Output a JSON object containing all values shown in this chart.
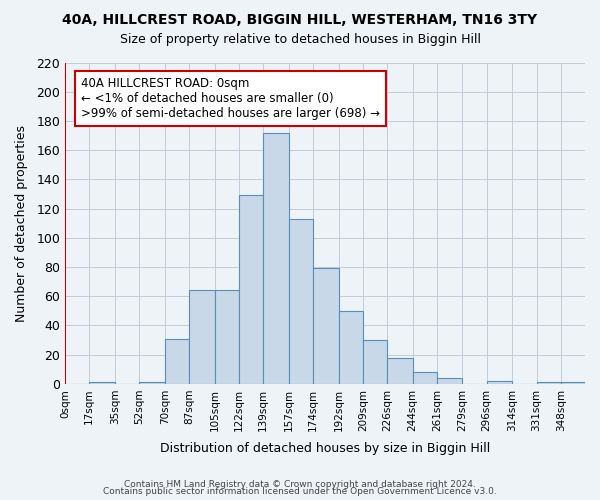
{
  "title1": "40A, HILLCREST ROAD, BIGGIN HILL, WESTERHAM, TN16 3TY",
  "title2": "Size of property relative to detached houses in Biggin Hill",
  "xlabel": "Distribution of detached houses by size in Biggin Hill",
  "ylabel": "Number of detached properties",
  "bar_values": [
    0,
    1,
    0,
    1,
    31,
    64,
    64,
    129,
    172,
    113,
    79,
    50,
    30,
    18,
    8,
    4,
    0,
    2,
    0,
    1,
    1
  ],
  "bar_labels": [
    "0sqm",
    "17sqm",
    "35sqm",
    "52sqm",
    "70sqm",
    "87sqm",
    "105sqm",
    "122sqm",
    "139sqm",
    "157sqm",
    "174sqm",
    "192sqm",
    "209sqm",
    "226sqm",
    "244sqm",
    "261sqm",
    "279sqm",
    "296sqm",
    "314sqm",
    "331sqm",
    "348sqm"
  ],
  "bin_edges": [
    0,
    17,
    35,
    52,
    70,
    87,
    105,
    122,
    139,
    157,
    174,
    192,
    209,
    226,
    244,
    261,
    279,
    296,
    314,
    331,
    348,
    365
  ],
  "bar_color": "#c8d8e8",
  "bar_edgecolor": "#5a8fb5",
  "ylim": [
    0,
    220
  ],
  "yticks": [
    0,
    20,
    40,
    60,
    80,
    100,
    120,
    140,
    160,
    180,
    200,
    220
  ],
  "annotation_line1": "40A HILLCREST ROAD: 0sqm",
  "annotation_line2": "← <1% of detached houses are smaller (0)",
  "annotation_line3": ">99% of semi-detached houses are larger (698) →",
  "annotation_box_color": "#ffffff",
  "annotation_box_edgecolor": "#cc0000",
  "vline_x": 0,
  "vline_color": "#cc0000",
  "grid_color": "#c0ccd8",
  "bg_color": "#eef3f8",
  "footer1": "Contains HM Land Registry data © Crown copyright and database right 2024.",
  "footer2": "Contains public sector information licensed under the Open Government Licence v3.0."
}
